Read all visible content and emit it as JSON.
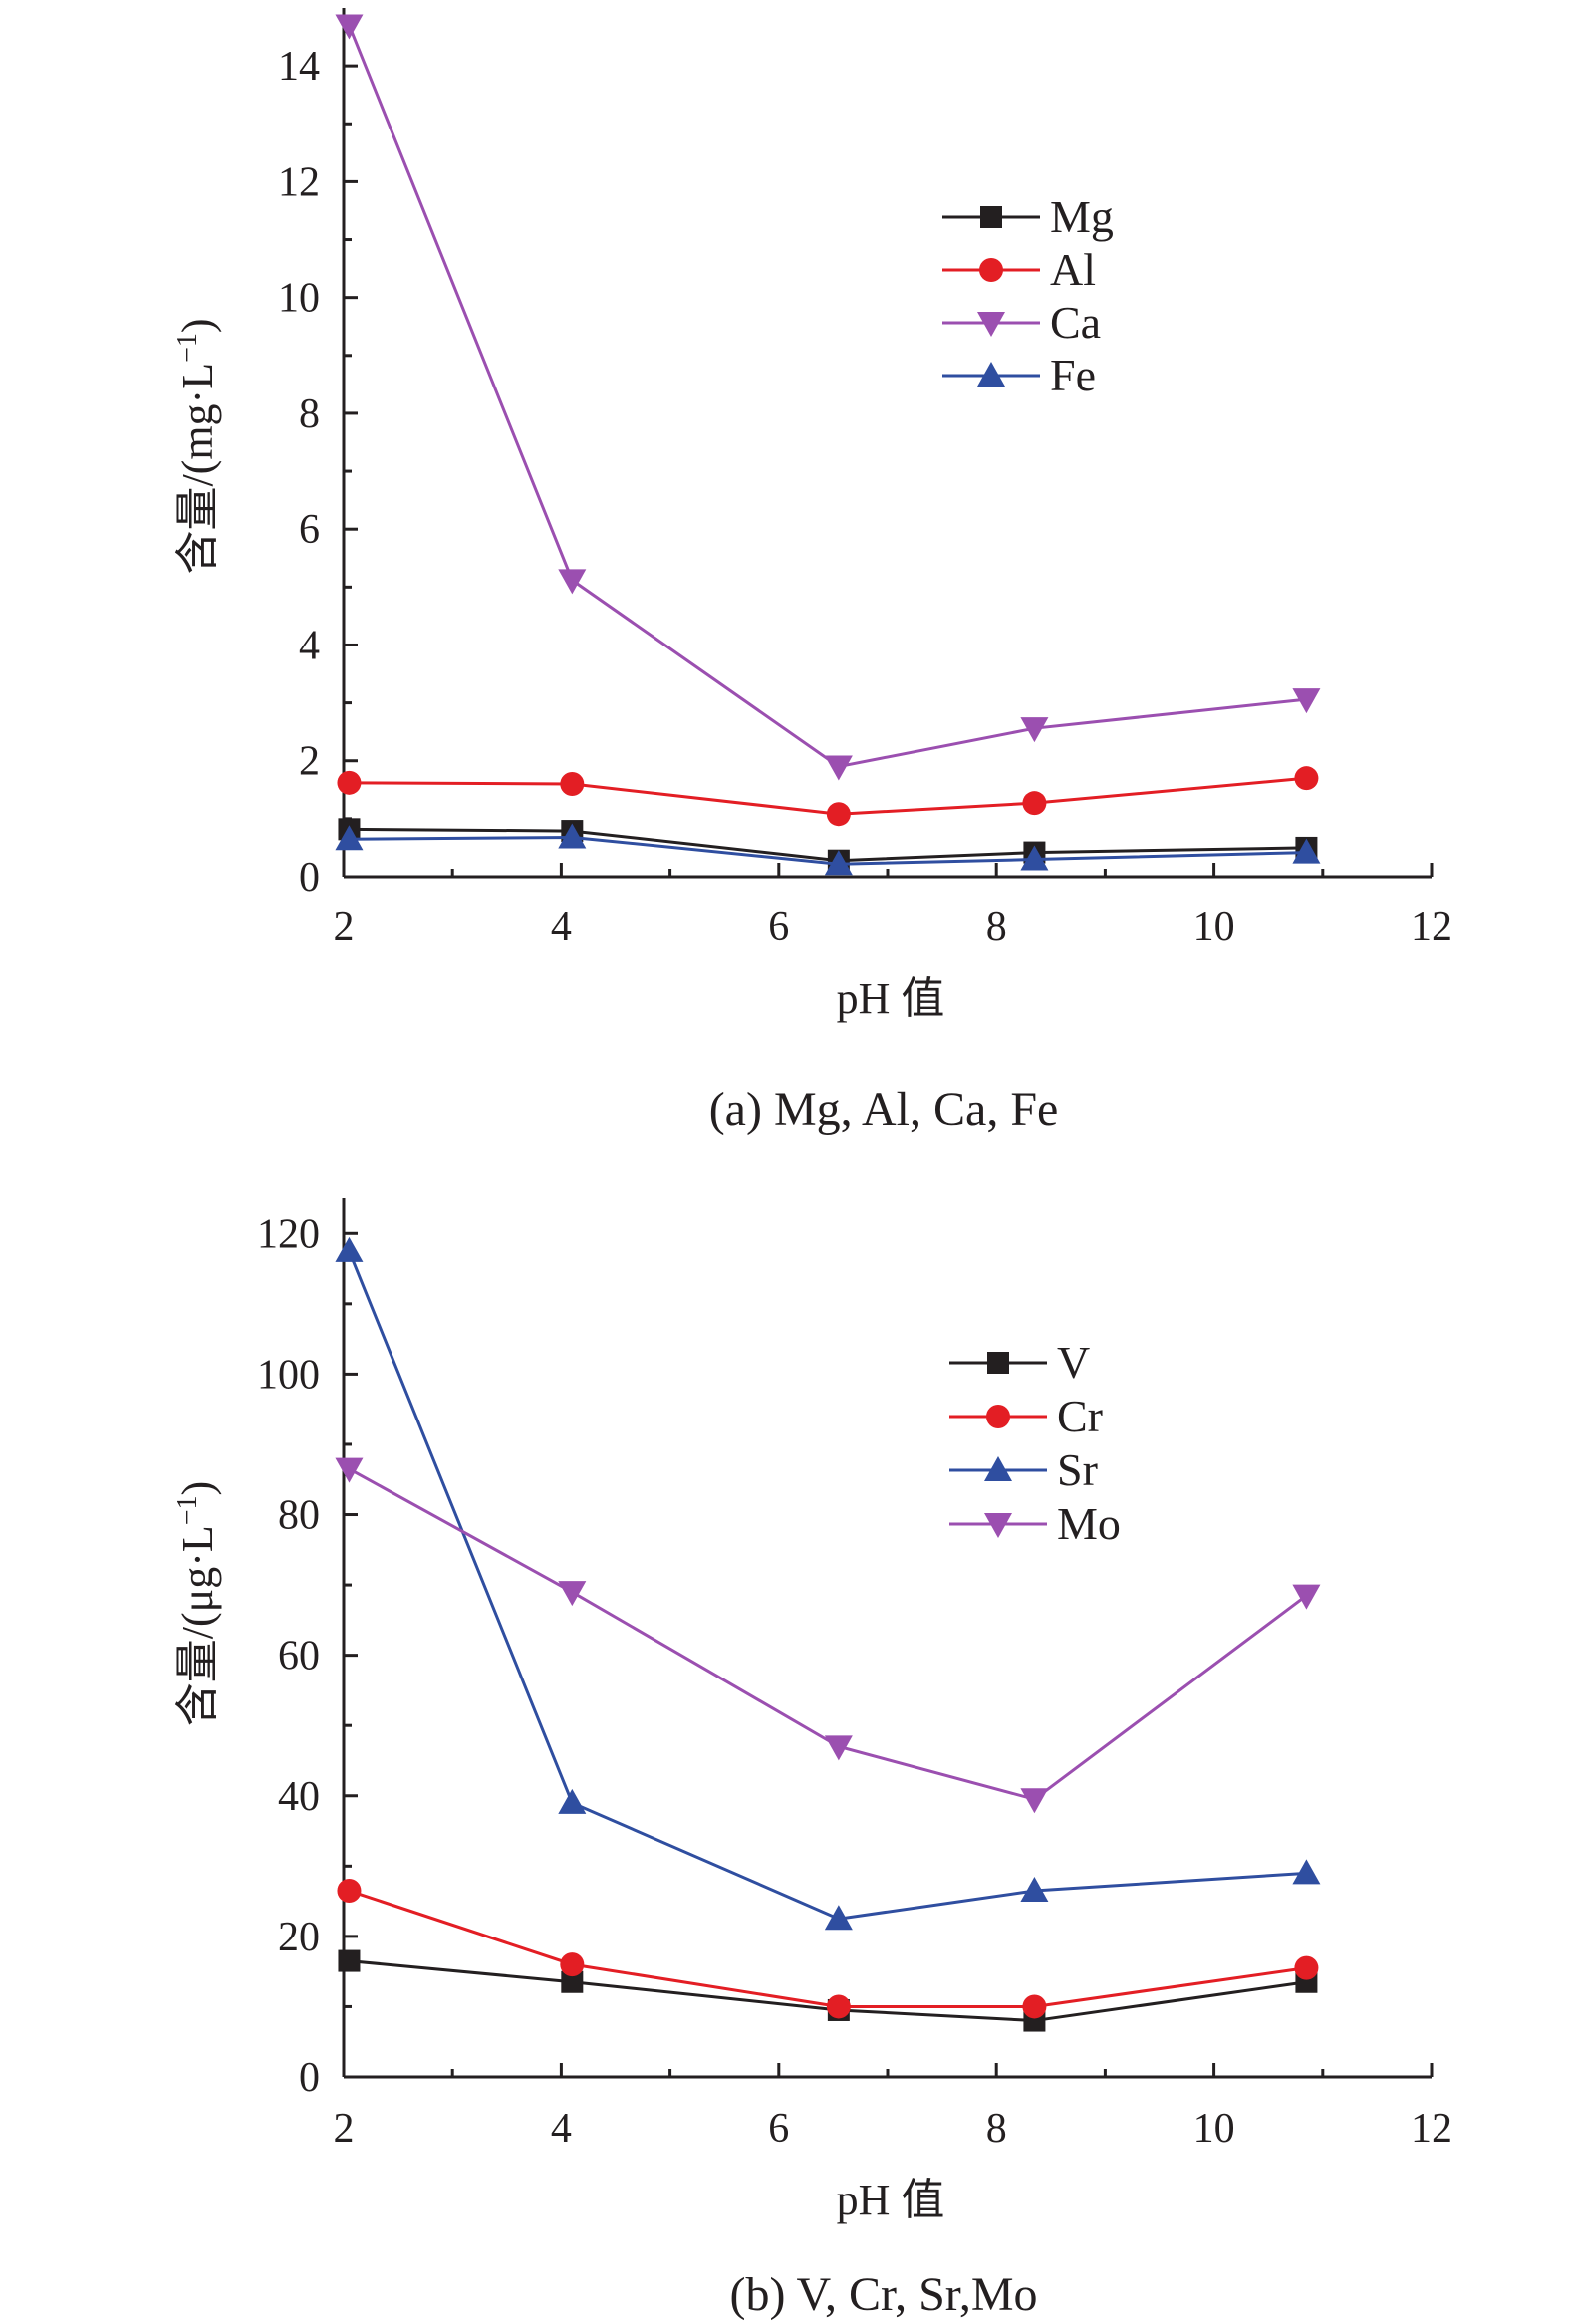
{
  "chart_data": [
    {
      "type": "line",
      "caption": "(a) Mg, Al, Ca, Fe",
      "xlabel": "pH 值",
      "ylabel": "含量/(mg·L",
      "ylabel_sup": "−1",
      "ylabel_close": ")",
      "xlim": [
        2,
        12
      ],
      "ylim": [
        0,
        15
      ],
      "xticks": [
        2,
        4,
        6,
        8,
        10,
        12
      ],
      "yticks": [
        0,
        2,
        4,
        6,
        8,
        10,
        12,
        14
      ],
      "x": [
        2.05,
        4.1,
        6.55,
        8.35,
        10.85
      ],
      "legend_position": "top-right",
      "series": [
        {
          "name": "Mg",
          "marker": "square",
          "color": "#231f20",
          "values": [
            0.82,
            0.79,
            0.28,
            0.42,
            0.5
          ]
        },
        {
          "name": "Al",
          "marker": "circle",
          "color": "#e31e24",
          "values": [
            1.62,
            1.6,
            1.08,
            1.27,
            1.7
          ]
        },
        {
          "name": "Ca",
          "marker": "triangle-down",
          "color": "#9b4fb0",
          "values": [
            14.7,
            5.12,
            1.9,
            2.56,
            3.06
          ]
        },
        {
          "name": "Fe",
          "marker": "triangle-up",
          "color": "#2f4ea0",
          "values": [
            0.65,
            0.68,
            0.22,
            0.3,
            0.42
          ]
        }
      ]
    },
    {
      "type": "line",
      "caption": "(b) V, Cr, Sr,Mo",
      "xlabel": "pH 值",
      "ylabel": "含量/(μg·L",
      "ylabel_sup": "−1",
      "ylabel_close": ")",
      "xlim": [
        2,
        12
      ],
      "ylim": [
        0,
        125
      ],
      "xticks": [
        2,
        4,
        6,
        8,
        10,
        12
      ],
      "yticks": [
        0,
        20,
        40,
        60,
        80,
        100,
        120
      ],
      "x": [
        2.05,
        4.1,
        6.55,
        8.35,
        10.85
      ],
      "legend_position": "top-right",
      "series": [
        {
          "name": "V",
          "marker": "square",
          "color": "#231f20",
          "values": [
            16.5,
            13.5,
            9.5,
            8.0,
            13.5
          ]
        },
        {
          "name": "Cr",
          "marker": "circle",
          "color": "#e31e24",
          "values": [
            26.5,
            16.0,
            10.0,
            10.0,
            15.5
          ]
        },
        {
          "name": "Sr",
          "marker": "triangle-up",
          "color": "#2f4ea0",
          "values": [
            117.5,
            39.0,
            22.5,
            26.5,
            29.0
          ]
        },
        {
          "name": "Mo",
          "marker": "triangle-down",
          "color": "#9b4fb0",
          "values": [
            86.5,
            69.0,
            47.0,
            39.5,
            68.5
          ]
        }
      ]
    }
  ]
}
